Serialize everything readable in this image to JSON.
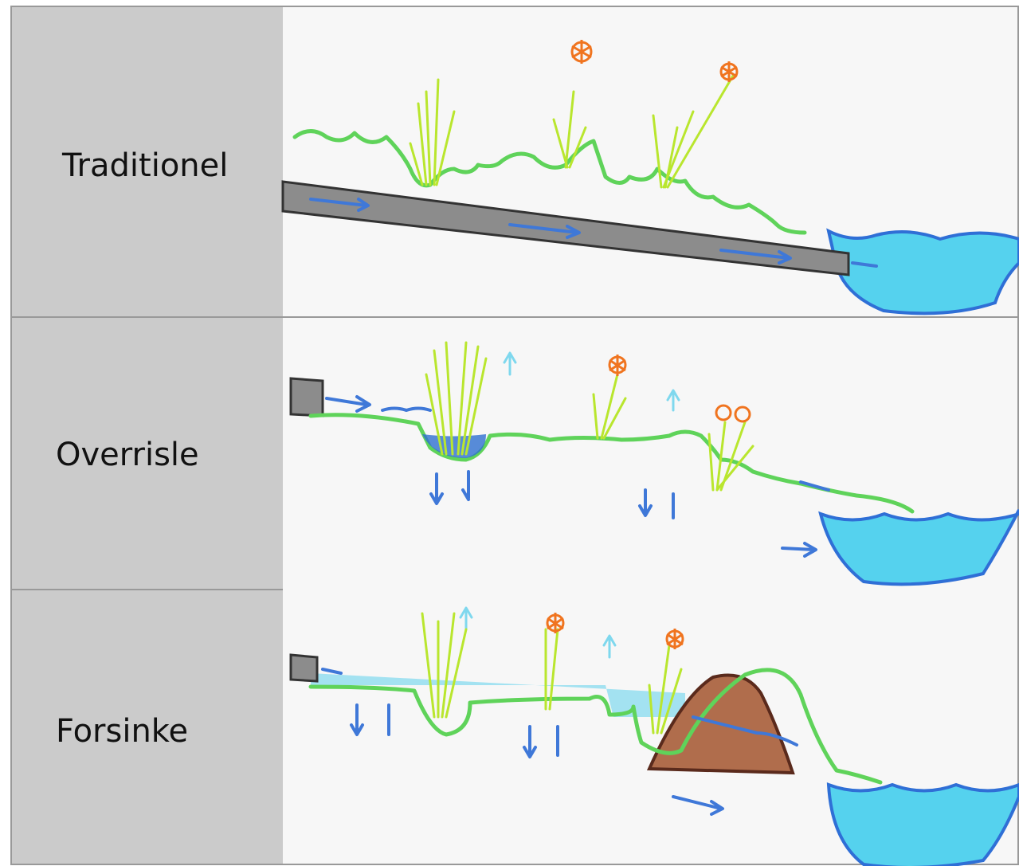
{
  "table": {
    "rows": [
      {
        "label": "Traditionel"
      },
      {
        "label": "Overrisle"
      },
      {
        "label": "Forsinke"
      }
    ]
  }
}
